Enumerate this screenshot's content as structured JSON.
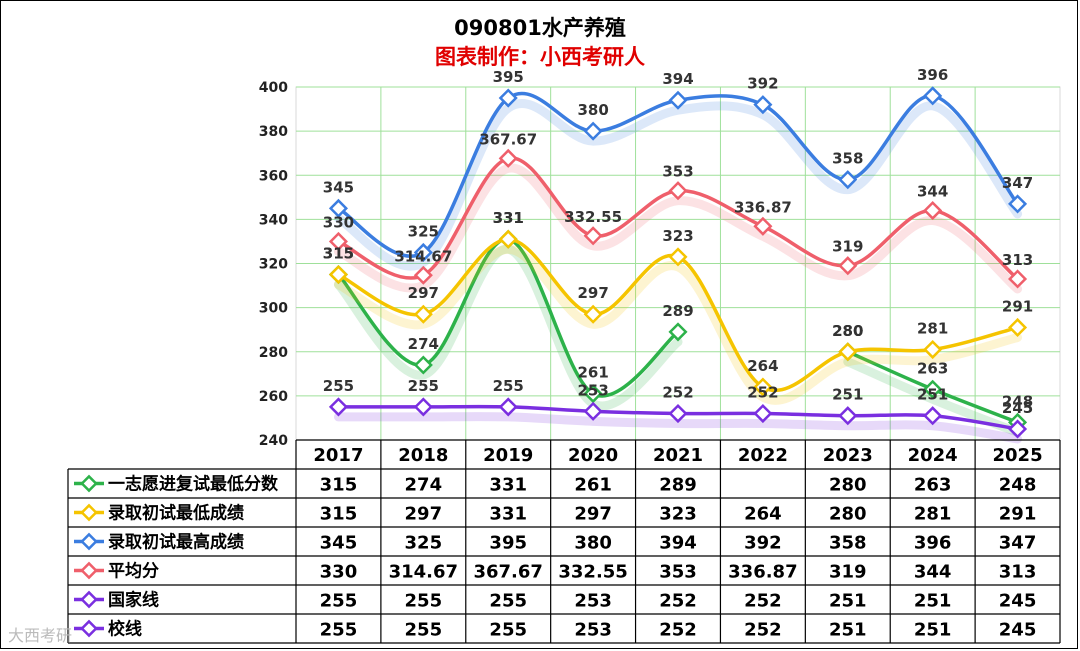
{
  "title": "090801水产养殖",
  "subtitle": "图表制作：小西考研人",
  "watermark": "大西考研",
  "chart_data": {
    "type": "line",
    "categories": [
      "2017",
      "2018",
      "2019",
      "2020",
      "2021",
      "2022",
      "2023",
      "2024",
      "2025"
    ],
    "ylim": [
      240,
      400
    ],
    "yticks": [
      240,
      260,
      280,
      300,
      320,
      340,
      360,
      380,
      400
    ],
    "grid": true,
    "legend": "table-left",
    "series": [
      {
        "name": "一志愿进复试最低分数",
        "color": "#2db24a",
        "values": [
          315,
          274,
          331,
          261,
          289,
          null,
          280,
          263,
          248
        ],
        "labels": [
          "315",
          "274",
          "331",
          "261",
          "289",
          "",
          "280",
          "263",
          "248"
        ]
      },
      {
        "name": "录取初试最低成绩",
        "color": "#f5c400",
        "values": [
          315,
          297,
          331,
          297,
          323,
          264,
          280,
          281,
          291
        ],
        "labels": [
          "315",
          "297",
          "331",
          "297",
          "323",
          "264",
          "280",
          "281",
          "291"
        ]
      },
      {
        "name": "录取初试最高成绩",
        "color": "#3b7de0",
        "values": [
          345,
          325,
          395,
          380,
          394,
          392,
          358,
          396,
          347
        ],
        "labels": [
          "345",
          "325",
          "395",
          "380",
          "394",
          "392",
          "358",
          "396",
          "347"
        ]
      },
      {
        "name": "平均分",
        "color": "#ef5f6b",
        "values": [
          330,
          314.67,
          367.67,
          332.55,
          353,
          336.87,
          319,
          344,
          313
        ],
        "labels": [
          "330",
          "314.67",
          "367.67",
          "332.55",
          "353",
          "336.87",
          "319",
          "344",
          "313"
        ]
      },
      {
        "name": "国家线",
        "color": "#7a2fe0",
        "values": [
          255,
          255,
          255,
          253,
          252,
          252,
          251,
          251,
          245
        ],
        "labels": [
          "255",
          "255",
          "255",
          "253",
          "252",
          "252",
          "251",
          "251",
          "245"
        ]
      },
      {
        "name": "校线",
        "color": "#7a2fe0",
        "values": [
          255,
          255,
          255,
          253,
          252,
          252,
          251,
          251,
          245
        ],
        "labels": [
          "255",
          "255",
          "255",
          "253",
          "252",
          "252",
          "251",
          "251",
          "245"
        ]
      }
    ]
  }
}
